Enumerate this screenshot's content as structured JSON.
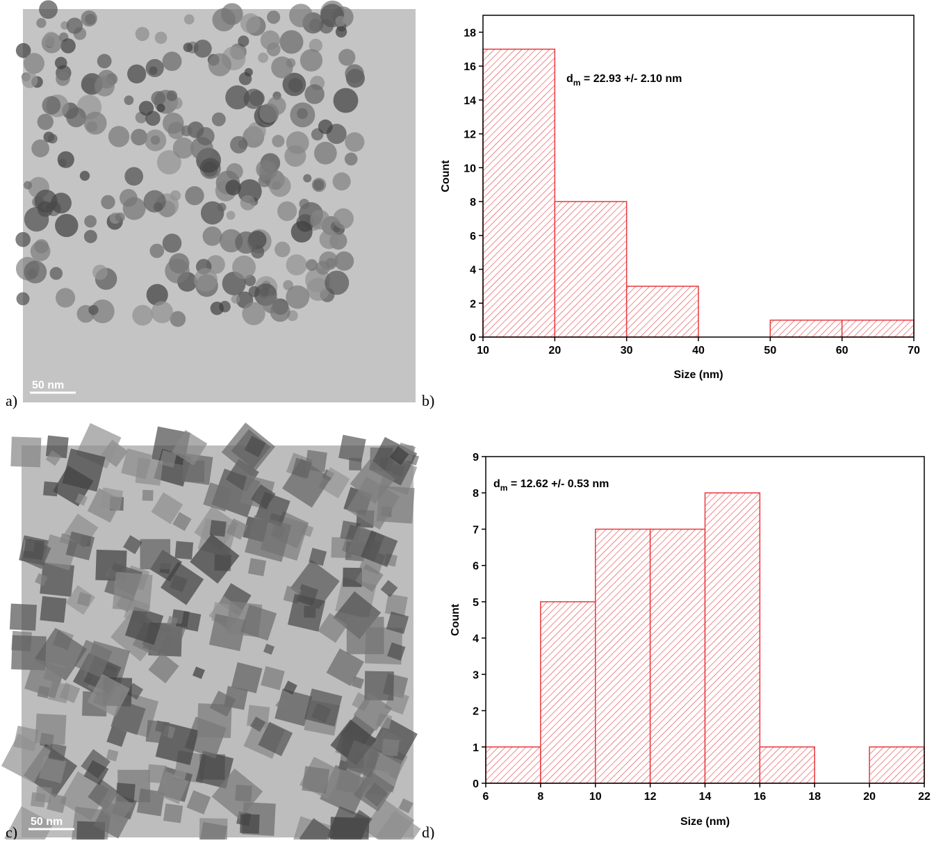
{
  "chart_data": [
    {
      "type": "histogram",
      "bins": [
        10,
        20,
        30,
        40,
        50,
        60,
        70
      ],
      "values": [
        17,
        8,
        3,
        0,
        1,
        1
      ],
      "color": "#e8383d",
      "hatch": "diagonal",
      "xlim": [
        10,
        70
      ],
      "xticks": [
        10,
        20,
        30,
        40,
        50,
        60,
        70
      ],
      "ylim": [
        0,
        19
      ],
      "yticks": [
        0,
        2,
        4,
        6,
        8,
        10,
        12,
        14,
        16,
        18
      ],
      "x_label": "Size (nm)",
      "y_label": "Count",
      "annotation": {
        "symbol": "d",
        "subscript": "m",
        "text": " = 22.93 +/- 2.10 nm"
      }
    },
    {
      "type": "histogram",
      "bins": [
        6,
        8,
        10,
        12,
        14,
        16,
        18,
        20,
        22
      ],
      "values": [
        1,
        5,
        7,
        7,
        8,
        1,
        0,
        1
      ],
      "color": "#e8383d",
      "hatch": "diagonal",
      "xlim": [
        6,
        22
      ],
      "xticks": [
        6,
        8,
        10,
        12,
        14,
        16,
        18,
        20,
        22
      ],
      "ylim": [
        0,
        9
      ],
      "yticks": [
        0,
        1,
        2,
        3,
        4,
        5,
        6,
        7,
        8,
        9
      ],
      "x_label": "Size (nm)",
      "y_label": "Count",
      "annotation": {
        "symbol": "d",
        "subscript": "m",
        "text": " = 12.62 +/- 0.53 nm"
      }
    }
  ],
  "panels": {
    "labels": [
      "a)",
      "b)",
      "c)",
      "d)"
    ],
    "scale_bars": [
      "50 nm",
      "50 nm"
    ]
  }
}
